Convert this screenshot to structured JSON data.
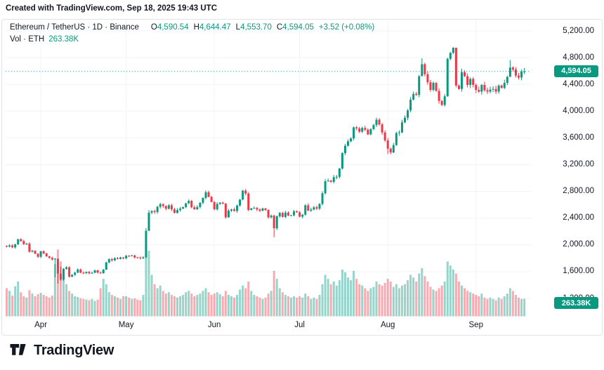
{
  "attribution": "Created with TradingView.com, Sep 18, 2025 19:43 UTC",
  "legend": {
    "symbol_title": "Ethereum / TetherUS · 1D · Binance",
    "ohlc": [
      {
        "label": "O",
        "value": "4,590.54"
      },
      {
        "label": "H",
        "value": "4,644.47"
      },
      {
        "label": "L",
        "value": "4,553.70"
      },
      {
        "label": "C",
        "value": "4,594.05"
      }
    ],
    "change": "+3.52 (+0.08%)",
    "volume_label": "Vol · ETH",
    "volume_value": "263.38K"
  },
  "price_scale": {
    "ticks": [
      {
        "label": "5,200.00",
        "value": 5200
      },
      {
        "label": "4,800.00",
        "value": 4800
      },
      {
        "label": "4,400.00",
        "value": 4400
      },
      {
        "label": "4,000.00",
        "value": 4000
      },
      {
        "label": "3,600.00",
        "value": 3600
      },
      {
        "label": "3,200.00",
        "value": 3200
      },
      {
        "label": "2,800.00",
        "value": 2800
      },
      {
        "label": "2,400.00",
        "value": 2400
      },
      {
        "label": "2,000.00",
        "value": 2000
      },
      {
        "label": "1,600.00",
        "value": 1600
      },
      {
        "label": "1,200.00",
        "value": 1200
      }
    ],
    "current": {
      "label": "4,594.05",
      "value": 4594.05
    }
  },
  "time_scale": {
    "months": [
      {
        "label": "Apr",
        "day_index": 12
      },
      {
        "label": "May",
        "day_index": 42
      },
      {
        "label": "Jun",
        "day_index": 73
      },
      {
        "label": "Jul",
        "day_index": 103
      },
      {
        "label": "Aug",
        "day_index": 134
      },
      {
        "label": "Sep",
        "day_index": 165
      }
    ]
  },
  "volume_badge": "263.38K",
  "logo_text": "TradingView",
  "colors": {
    "up": "#089981",
    "down": "#f23645",
    "up_volume": "rgba(8,153,129,0.42)",
    "down_volume": "rgba(242,54,69,0.42)",
    "grid": "#f0f3fa",
    "text": "#131722",
    "badge_bg": "#089981"
  },
  "chart_data": {
    "type": "candlestick+volume",
    "title": "Ethereum / TetherUS · 1D · Binance",
    "x_axis_labels": [
      "Apr",
      "May",
      "Jun",
      "Jul",
      "Aug",
      "Sep"
    ],
    "y_axis_ticks": [
      1200,
      1600,
      2000,
      2400,
      2800,
      3200,
      3600,
      4000,
      4400,
      4800,
      5200
    ],
    "ylim": [
      1150,
      5370
    ],
    "grid": true,
    "legend_position": "top-left",
    "last_candle": {
      "open": 4590.54,
      "high": 4644.47,
      "low": 4553.7,
      "close": 4594.05,
      "change": 3.52,
      "change_pct": 0.08,
      "volume_k": 263.38
    },
    "current_price": 4594.05,
    "closes": [
      1975,
      1992,
      1963,
      2008,
      2085,
      2056,
      2012,
      2018,
      1898,
      1912,
      1868,
      1822,
      1905,
      1872,
      1828,
      1806,
      1782,
      1794,
      1571,
      1480,
      1640,
      1665,
      1524,
      1552,
      1585,
      1632,
      1584,
      1577,
      1596,
      1575,
      1583,
      1620,
      1585,
      1577,
      1630,
      1738,
      1786,
      1768,
      1802,
      1790,
      1812,
      1798,
      1838,
      1834,
      1842,
      1812,
      1810,
      1800,
      1815,
      2212,
      2482,
      2506,
      2492,
      2570,
      2608,
      2582,
      2540,
      2592,
      2532,
      2478,
      2520,
      2542,
      2565,
      2622,
      2658,
      2562,
      2532,
      2566,
      2630,
      2702,
      2788,
      2718,
      2642,
      2532,
      2612,
      2632,
      2618,
      2412,
      2512,
      2530,
      2508,
      2588,
      2678,
      2812,
      2768,
      2522,
      2546,
      2552,
      2530,
      2512,
      2545,
      2522,
      2412,
      2438,
      2248,
      2428,
      2478,
      2418,
      2482,
      2438,
      2442,
      2502,
      2488,
      2422,
      2452,
      2592,
      2512,
      2528,
      2562,
      2542,
      2612,
      2772,
      2952,
      2962,
      2942,
      3012,
      3018,
      3142,
      3372,
      3482,
      3548,
      3592,
      3758,
      3742,
      3692,
      3748,
      3722,
      3652,
      3732,
      3792,
      3872,
      3802,
      3682,
      3562,
      3438,
      3382,
      3492,
      3672,
      3682,
      3832,
      3902,
      4012,
      4172,
      4258,
      4242,
      4522,
      4702,
      4552,
      4432,
      4318,
      4422,
      4302,
      4152,
      4092,
      4222,
      4782,
      4872,
      4948,
      4382,
      4332,
      4582,
      4522,
      4392,
      4482,
      4392,
      4318,
      4292,
      4392,
      4312,
      4292,
      4322,
      4332,
      4292,
      4382,
      4348,
      4422,
      4512,
      4652,
      4622,
      4532,
      4502,
      4590.54,
      4594.05
    ],
    "volumes_k": [
      420,
      380,
      310,
      450,
      520,
      360,
      300,
      280,
      390,
      340,
      300,
      330,
      350,
      320,
      300,
      280,
      310,
      780,
      1000,
      820,
      560,
      480,
      380,
      340,
      300,
      290,
      270,
      260,
      250,
      240,
      260,
      230,
      250,
      420,
      560,
      480,
      360,
      320,
      300,
      280,
      260,
      300,
      300,
      280,
      260,
      270,
      250,
      240,
      320,
      1050,
      980,
      620,
      480,
      420,
      460,
      380,
      340,
      360,
      320,
      300,
      280,
      300,
      320,
      360,
      380,
      340,
      300,
      320,
      340,
      380,
      420,
      360,
      320,
      340,
      360,
      330,
      300,
      380,
      320,
      300,
      280,
      320,
      400,
      460,
      420,
      520,
      380,
      320,
      300,
      280,
      260,
      280,
      340,
      380,
      680,
      560,
      420,
      360,
      320,
      300,
      280,
      300,
      280,
      300,
      280,
      340,
      300,
      260,
      280,
      260,
      320,
      480,
      620,
      560,
      480,
      520,
      460,
      540,
      700,
      660,
      580,
      540,
      680,
      560,
      480,
      460,
      420,
      380,
      420,
      440,
      520,
      480,
      460,
      500,
      560,
      520,
      440,
      480,
      420,
      460,
      480,
      540,
      620,
      580,
      520,
      640,
      720,
      600,
      520,
      440,
      400,
      380,
      420,
      460,
      520,
      820,
      760,
      700,
      640,
      520,
      460,
      420,
      380,
      360,
      340,
      320,
      300,
      340,
      280,
      260,
      280,
      260,
      240,
      280,
      260,
      300,
      340,
      420,
      380,
      320,
      280,
      260,
      263.38
    ],
    "wick_overrides": {
      "17": [
        1802,
        1515
      ],
      "18": [
        1575,
        1420
      ],
      "19": [
        1672,
        1465
      ],
      "49": [
        2250,
        1802
      ],
      "50": [
        2520,
        2205
      ],
      "94": [
        2450,
        2115
      ],
      "134": [
        3598,
        3358
      ],
      "146": [
        4790,
        4545
      ],
      "155": [
        4800,
        4215
      ],
      "156": [
        4886,
        4760
      ],
      "157": [
        4956,
        4852
      ],
      "158": [
        4950,
        4355
      ],
      "177": [
        4762,
        4608
      ],
      "182": [
        4644.47,
        4553.7
      ]
    }
  }
}
